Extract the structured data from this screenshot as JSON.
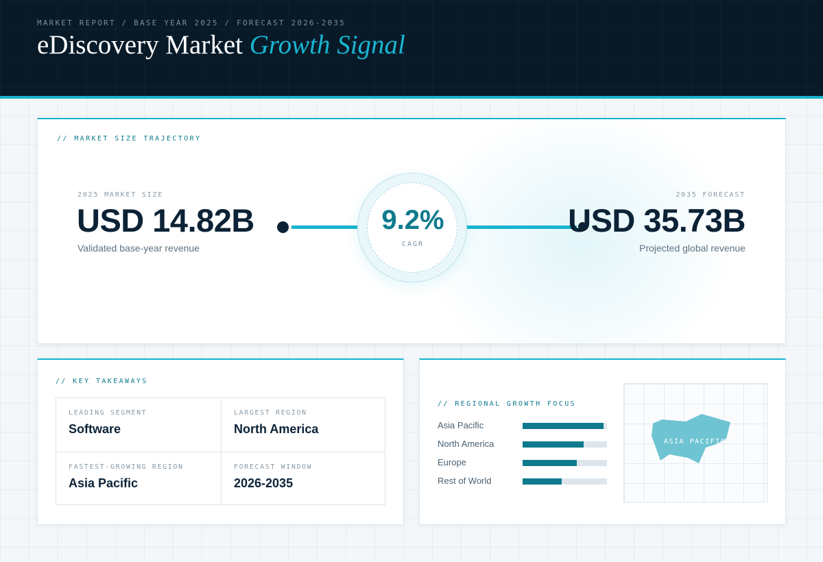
{
  "header": {
    "kicker": "MARKET REPORT / BASE YEAR 2025 / FORECAST 2026-2035",
    "title_main": "eDiscovery Market",
    "title_accent": "Growth Signal"
  },
  "trajectory": {
    "label": "// MARKET SIZE TRAJECTORY",
    "start": {
      "caption": "2025 MARKET SIZE",
      "value": "USD 14.82B",
      "sub": "Validated base-year revenue"
    },
    "end": {
      "caption": "2035 FORECAST",
      "value": "USD 35.73B",
      "sub": "Projected global revenue"
    },
    "cagr": {
      "value": "9.2%",
      "label": "CAGR"
    }
  },
  "takeaways": {
    "label": "// KEY TAKEAWAYS",
    "items": [
      {
        "label": "LEADING SEGMENT",
        "value": "Software"
      },
      {
        "label": "LARGEST REGION",
        "value": "North America"
      },
      {
        "label": "FASTEST-GROWING REGION",
        "value": "Asia Pacific"
      },
      {
        "label": "FORECAST WINDOW",
        "value": "2026-2035"
      }
    ]
  },
  "regional": {
    "label": "// REGIONAL GROWTH FOCUS",
    "bars": [
      {
        "name": "Asia Pacific",
        "fill": 0.96
      },
      {
        "name": "North America",
        "fill": 0.72
      },
      {
        "name": "Europe",
        "fill": 0.64
      },
      {
        "name": "Rest of World",
        "fill": 0.46
      }
    ],
    "map_label": "ASIA PACIFIC"
  },
  "colors": {
    "accent": "#16b3cf",
    "accent_dark": "#0e7a8c",
    "navy": "#081a28",
    "map_fill": "#6ec4d2"
  }
}
